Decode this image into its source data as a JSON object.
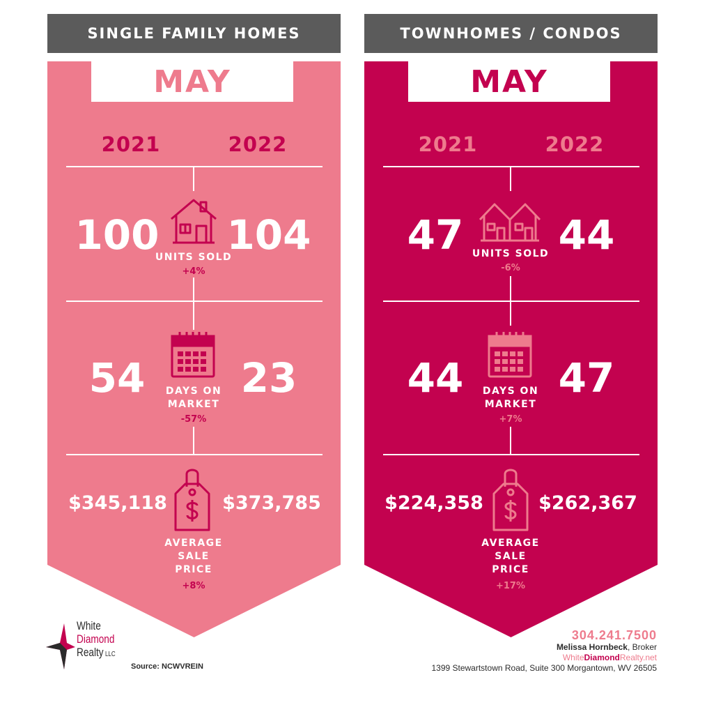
{
  "colors": {
    "header_bg": "#5b5b5b",
    "left_banner": "#ee7b8d",
    "right_banner": "#c3024f",
    "left_accent": "#c3024f",
    "right_accent": "#ee7b8d",
    "white": "#ffffff"
  },
  "left": {
    "header": "SINGLE FAMILY HOMES",
    "month": "MAY",
    "year_a": "2021",
    "year_b": "2022",
    "units": {
      "a": "100",
      "b": "104",
      "label": "UNITS SOLD",
      "change": "+4%",
      "icon": "house-icon"
    },
    "days": {
      "a": "54",
      "b": "23",
      "label_1": "DAYS ON",
      "label_2": "MARKET",
      "change": "-57%",
      "icon": "calendar-icon"
    },
    "price": {
      "a": "$345,118",
      "b": "$373,785",
      "label_1": "AVERAGE",
      "label_2": "SALE",
      "label_3": "PRICE",
      "change": "+8%",
      "icon": "price-tag-icon"
    }
  },
  "right": {
    "header": "TOWNHOMES / CONDOS",
    "month": "MAY",
    "year_a": "2021",
    "year_b": "2022",
    "units": {
      "a": "47",
      "b": "44",
      "label": "UNITS SOLD",
      "change": "-6%",
      "icon": "townhouse-icon"
    },
    "days": {
      "a": "44",
      "b": "47",
      "label_1": "DAYS ON",
      "label_2": "MARKET",
      "change": "+7%",
      "icon": "calendar-icon"
    },
    "price": {
      "a": "$224,358",
      "b": "$262,367",
      "label_1": "AVERAGE",
      "label_2": "SALE",
      "label_3": "PRICE",
      "change": "+17%",
      "icon": "price-tag-icon"
    }
  },
  "footer": {
    "logo_line1": "White",
    "logo_line2": "Diamond",
    "logo_line3": "Realty",
    "logo_suffix": "LLC",
    "source": "Source: NCWVREIN",
    "phone": "304.241.7500",
    "broker_name": "Melissa Hornbeck",
    "broker_title": ", Broker",
    "website_a": "White",
    "website_b": "Diamond",
    "website_c": "Realty.net",
    "address": "1399 Stewartstown Road, Suite 300 Morgantown, WV 26505"
  }
}
